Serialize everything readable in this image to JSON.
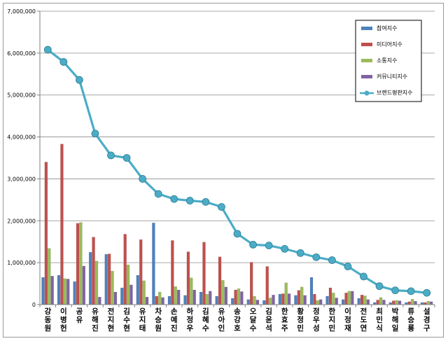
{
  "chart_data": {
    "type": "bar",
    "title": "",
    "xlabel": "",
    "ylabel": "",
    "ylim": [
      0,
      7000000
    ],
    "yticks": [
      0,
      1000000,
      2000000,
      3000000,
      4000000,
      5000000,
      6000000,
      7000000
    ],
    "ytick_labels": [
      "0",
      "1,000,000",
      "2,000,000",
      "3,000,000",
      "4,000,000",
      "5,000,000",
      "6,000,000",
      "7,000,000"
    ],
    "grid": true,
    "legend_position": "top-right",
    "categories": [
      "강동원",
      "이병헌",
      "공유",
      "유해진",
      "전지현",
      "김수현",
      "유지태",
      "차승원",
      "손예진",
      "하정우",
      "김혜수",
      "유아인",
      "송강호",
      "오달수",
      "김윤석",
      "한효주",
      "황정민",
      "정우성",
      "한지민",
      "이정재",
      "전도연",
      "최민식",
      "박해일",
      "류승룡",
      "설경구"
    ],
    "series": [
      {
        "name": "참여지수",
        "kind": "bar",
        "color": "#4f81bd",
        "values": [
          650000,
          700000,
          550000,
          1250000,
          1200000,
          400000,
          700000,
          1950000,
          200000,
          220000,
          300000,
          200000,
          150000,
          120000,
          100000,
          250000,
          220000,
          650000,
          200000,
          120000,
          150000,
          50000,
          50000,
          50000,
          50000
        ]
      },
      {
        "name": "미디어지수",
        "kind": "bar",
        "color": "#c0504d",
        "values": [
          3400000,
          3830000,
          1940000,
          1610000,
          1210000,
          1680000,
          1550000,
          200000,
          1530000,
          1260000,
          1490000,
          1140000,
          350000,
          1010000,
          910000,
          260000,
          340000,
          250000,
          400000,
          280000,
          230000,
          110000,
          90000,
          70000,
          50000
        ]
      },
      {
        "name": "소통지수",
        "kind": "bar",
        "color": "#9bbb59",
        "values": [
          1340000,
          620000,
          1960000,
          1040000,
          800000,
          950000,
          570000,
          300000,
          430000,
          640000,
          250000,
          580000,
          380000,
          200000,
          160000,
          520000,
          420000,
          100000,
          280000,
          320000,
          210000,
          170000,
          100000,
          130000,
          80000
        ]
      },
      {
        "name": "커뮤니티지수",
        "kind": "bar",
        "color": "#8064a2",
        "values": [
          680000,
          610000,
          920000,
          180000,
          300000,
          470000,
          180000,
          170000,
          350000,
          350000,
          320000,
          420000,
          310000,
          110000,
          230000,
          260000,
          220000,
          120000,
          160000,
          320000,
          120000,
          110000,
          90000,
          80000,
          70000
        ]
      },
      {
        "name": "브랜드평판지수",
        "kind": "line",
        "color": "#4bacc6",
        "values": [
          6080000,
          5790000,
          5360000,
          4080000,
          3560000,
          3500000,
          3000000,
          2640000,
          2520000,
          2480000,
          2450000,
          2330000,
          1690000,
          1430000,
          1410000,
          1330000,
          1230000,
          1130000,
          1060000,
          910000,
          670000,
          440000,
          340000,
          320000,
          280000
        ]
      }
    ]
  }
}
